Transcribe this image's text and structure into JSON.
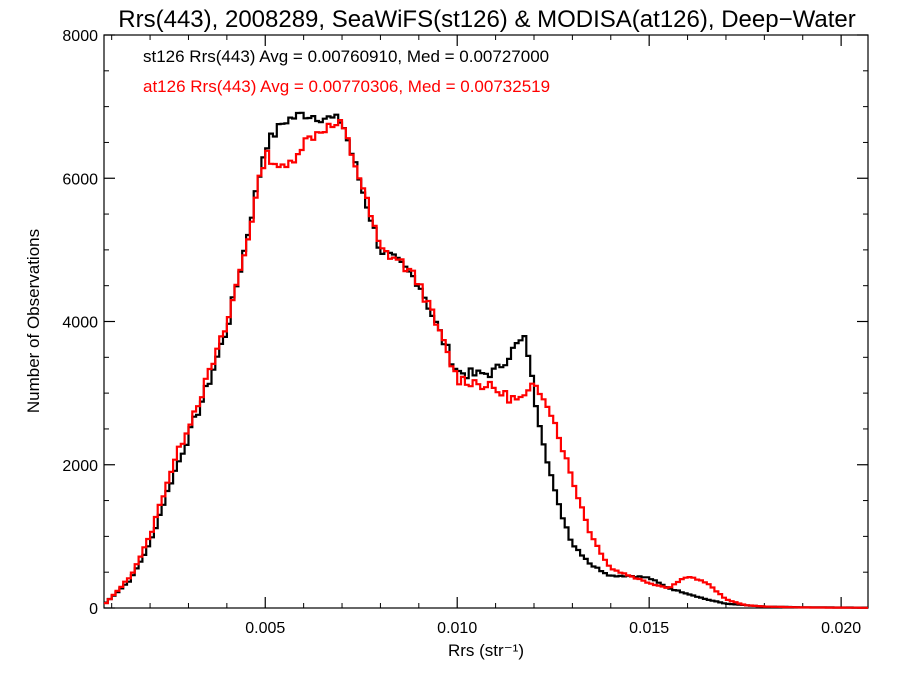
{
  "chart_data": {
    "type": "line",
    "title": "Rrs(443), 2008289, SeaWiFS(st126) & MODISA(at126), Deep−Water",
    "xlabel": "Rrs (str⁻¹)",
    "ylabel": "Number of Observations",
    "xlim": [
      0.0008,
      0.0207
    ],
    "ylim": [
      0,
      8000
    ],
    "xticks": [
      0.005,
      0.01,
      0.015,
      0.02
    ],
    "xtick_labels": [
      "0.005",
      "0.010",
      "0.015",
      "0.020"
    ],
    "yticks": [
      0,
      2000,
      4000,
      6000,
      8000
    ],
    "ytick_labels": [
      "0",
      "2000",
      "4000",
      "6000",
      "8000"
    ],
    "grid": false,
    "legend_placement": "top-left",
    "annotations": [
      {
        "text": "st126 Rrs(443) Avg = 0.00760910, Med = 0.00727000",
        "color": "#000000"
      },
      {
        "text": "at126 Rrs(443) Avg = 0.00770306, Med = 0.00732519",
        "color": "#ff0000"
      }
    ],
    "series": [
      {
        "color": "#000000",
        "x": [
          0.0008,
          0.001,
          0.0015,
          0.002,
          0.0025,
          0.003,
          0.0035,
          0.004,
          0.0045,
          0.005,
          0.0055,
          0.006,
          0.0065,
          0.007,
          0.0075,
          0.008,
          0.0085,
          0.009,
          0.0095,
          0.01,
          0.0105,
          0.011,
          0.0113,
          0.0116,
          0.0118,
          0.012,
          0.0123,
          0.0126,
          0.013,
          0.0135,
          0.014,
          0.0145,
          0.015,
          0.0155,
          0.016,
          0.0165,
          0.017,
          0.0175,
          0.018,
          0.019,
          0.0207
        ],
        "y": [
          50,
          150,
          400,
          900,
          1700,
          2400,
          3100,
          3900,
          5100,
          6450,
          6800,
          6900,
          6850,
          6800,
          5900,
          5000,
          4800,
          4550,
          3900,
          3300,
          3250,
          3300,
          3500,
          3700,
          3750,
          3000,
          2200,
          1500,
          900,
          600,
          450,
          450,
          420,
          280,
          200,
          120,
          60,
          40,
          20,
          10,
          5
        ]
      },
      {
        "color": "#ff0000",
        "x": [
          0.0008,
          0.001,
          0.0015,
          0.002,
          0.0025,
          0.003,
          0.0035,
          0.004,
          0.0045,
          0.005,
          0.0055,
          0.006,
          0.0065,
          0.007,
          0.0075,
          0.008,
          0.0085,
          0.009,
          0.0095,
          0.01,
          0.0105,
          0.011,
          0.0113,
          0.0116,
          0.0118,
          0.012,
          0.0123,
          0.0126,
          0.013,
          0.0135,
          0.014,
          0.0145,
          0.015,
          0.0155,
          0.016,
          0.0165,
          0.017,
          0.0175,
          0.018,
          0.019,
          0.0207
        ],
        "y": [
          40,
          150,
          450,
          1000,
          1850,
          2550,
          3200,
          3950,
          5050,
          6350,
          6100,
          6500,
          6700,
          6750,
          5950,
          5000,
          4850,
          4550,
          3900,
          3200,
          3150,
          3050,
          2950,
          2900,
          2950,
          3100,
          2950,
          2500,
          1800,
          1000,
          550,
          450,
          350,
          280,
          450,
          350,
          120,
          40,
          20,
          8,
          3
        ]
      }
    ]
  }
}
